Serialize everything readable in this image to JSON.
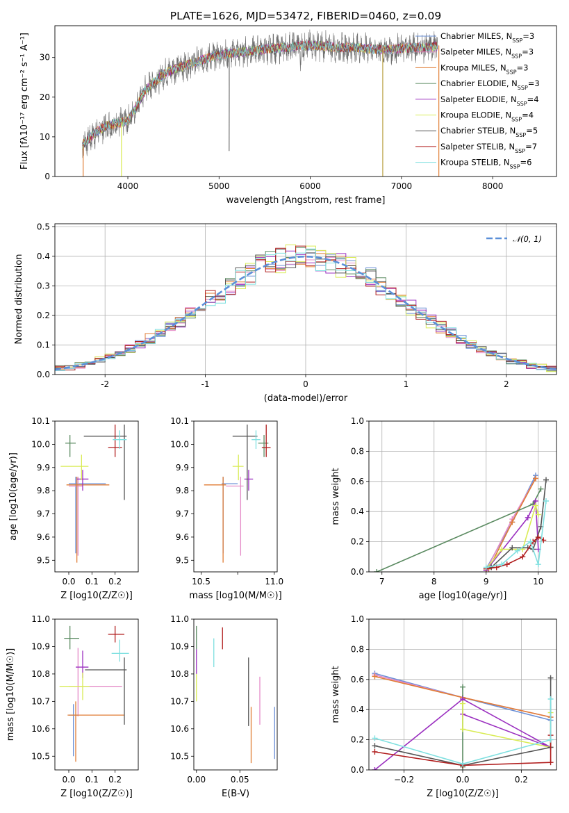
{
  "chart_data": [
    {
      "type": "line",
      "title": "PLATE=1626, MJD=53472, FIBERID=0460, z=0.09",
      "xlabel": "wavelength [Angstrom, rest frame]",
      "ylabel": "Flux [fλ10⁻¹⁷ erg cm⁻² s⁻¹ A⁻¹]",
      "xlim": [
        3200,
        8700
      ],
      "ylim": [
        0,
        38
      ],
      "xticks": [
        4000,
        5000,
        6000,
        7000,
        8000
      ],
      "yticks": [
        0,
        10,
        20,
        30
      ],
      "grid": false,
      "legend": "top-right",
      "continuum": {
        "wavelength": [
          3500,
          3600,
          3700,
          3800,
          3900,
          4000,
          4100,
          4200,
          4300,
          4400,
          4500,
          4700,
          4900,
          5100,
          5300,
          5500,
          5700,
          5900,
          6100,
          6300,
          6500,
          6700,
          6900,
          7100,
          7300,
          7400
        ],
        "flux": [
          8,
          10,
          12,
          13,
          13.5,
          14,
          18,
          22,
          24,
          26,
          27,
          28.5,
          30,
          31,
          31.5,
          32,
          32.5,
          33,
          33,
          32.5,
          32.5,
          32,
          32,
          32.5,
          32.5,
          33
        ]
      },
      "series": [
        {
          "name": "Chabrier MILES, N_SSP=3",
          "color": "#6a8fd6"
        },
        {
          "name": "Salpeter MILES, N_SSP=3",
          "color": "#e58bc8"
        },
        {
          "name": "Kroupa MILES, N_SSP=3",
          "color": "#e07d35"
        },
        {
          "name": "Chabrier ELODIE, N_SSP=3",
          "color": "#5a8a60"
        },
        {
          "name": "Salpeter ELODIE, N_SSP=4",
          "color": "#9b30c0"
        },
        {
          "name": "Kroupa ELODIE, N_SSP=4",
          "color": "#d9ec55"
        },
        {
          "name": "Chabrier STELIB, N_SSP=5",
          "color": "#555555"
        },
        {
          "name": "Salpeter STELIB, N_SSP=7",
          "color": "#b01c1c"
        },
        {
          "name": "Kroupa STELIB, N_SSP=6",
          "color": "#7fe0e0"
        }
      ]
    },
    {
      "type": "line",
      "xlabel": "(data-model)/error",
      "ylabel": "Normed distribution",
      "xlim": [
        -2.5,
        2.5
      ],
      "ylim": [
        0,
        0.51
      ],
      "xticks": [
        -2,
        -1,
        0,
        1,
        2
      ],
      "yticks": [
        0.0,
        0.1,
        0.2,
        0.3,
        0.4,
        0.5
      ],
      "grid": true,
      "legend": "top-right",
      "legend_label": "𝒩(0, 1)",
      "bin_width": 0.1,
      "bins_start": -2.5,
      "gaussian": {
        "mu": 0,
        "sigma": 1
      }
    },
    {
      "type": "scatter",
      "xlabel": "Z [log10(Z/Z☉)]",
      "ylabel": "age  [log10(age/yr)]",
      "xlim": [
        -0.06,
        0.3
      ],
      "ylim": [
        9.45,
        10.1
      ],
      "xticks": [
        0.0,
        0.1,
        0.2
      ],
      "yticks": [
        9.5,
        9.6,
        9.7,
        9.8,
        9.9,
        10.0,
        10.1
      ],
      "points": [
        {
          "model": 0,
          "x": 0.03,
          "y": 9.83,
          "xerr": [
            0.03,
            0.13
          ],
          "yerr": [
            0.3,
            0.03
          ]
        },
        {
          "model": 1,
          "x": 0.04,
          "y": 9.82,
          "xerr": [
            0.04,
            0.02
          ],
          "yerr": [
            0.3,
            0.04
          ]
        },
        {
          "model": 2,
          "x": 0.035,
          "y": 9.825,
          "xerr": [
            0.045,
            0.14
          ],
          "yerr": [
            0.335,
            0.035
          ]
        },
        {
          "model": 3,
          "x": 0.005,
          "y": 10.005,
          "xerr": [
            0.02,
            0.025
          ],
          "yerr": [
            0.06,
            0.035
          ]
        },
        {
          "model": 4,
          "x": 0.06,
          "y": 9.85,
          "xerr": [
            0.025,
            0.025
          ],
          "yerr": [
            0.05,
            0.04
          ]
        },
        {
          "model": 5,
          "x": 0.055,
          "y": 9.905,
          "xerr": [
            0.09,
            0.03
          ],
          "yerr": [
            0.06,
            0.05
          ]
        },
        {
          "model": 6,
          "x": 0.24,
          "y": 10.035,
          "xerr": [
            0.175,
            0.01
          ],
          "yerr": [
            0.275,
            0.05
          ]
        },
        {
          "model": 7,
          "x": 0.2,
          "y": 9.985,
          "xerr": [
            0.03,
            0.03
          ],
          "yerr": [
            0.04,
            0.1
          ]
        },
        {
          "model": 8,
          "x": 0.22,
          "y": 10.02,
          "xerr": [
            0.03,
            0.03
          ],
          "yerr": [
            0.04,
            0.04
          ]
        }
      ]
    },
    {
      "type": "scatter",
      "xlabel": "mass [log10(M/M☉)]",
      "ylabel": "",
      "xlim": [
        10.45,
        11.02
      ],
      "ylim": [
        9.45,
        10.1
      ],
      "xticks": [
        10.5,
        10.75,
        11.0
      ],
      "xticklabels": [
        "10.5",
        "",
        "11.0"
      ],
      "yticks": [
        9.5,
        9.6,
        9.7,
        9.8,
        9.9,
        10.0,
        10.1
      ],
      "points": [
        {
          "model": 0,
          "x": 10.65,
          "y": 9.83,
          "xerr": [
            0.01,
            0.1
          ],
          "yerr": [
            0.3,
            0.03
          ]
        },
        {
          "model": 1,
          "x": 10.77,
          "y": 9.82,
          "xerr": [
            0.1,
            0.02
          ],
          "yerr": [
            0.3,
            0.04
          ]
        },
        {
          "model": 2,
          "x": 10.65,
          "y": 9.825,
          "xerr": [
            0.13,
            0.02
          ],
          "yerr": [
            0.335,
            0.035
          ]
        },
        {
          "model": 3,
          "x": 10.93,
          "y": 10.005,
          "xerr": [
            0.04,
            0.03
          ],
          "yerr": [
            0.06,
            0.035
          ]
        },
        {
          "model": 4,
          "x": 10.825,
          "y": 9.85,
          "xerr": [
            0.03,
            0.03
          ],
          "yerr": [
            0.05,
            0.04
          ]
        },
        {
          "model": 5,
          "x": 10.755,
          "y": 9.905,
          "xerr": [
            0.04,
            0.035
          ],
          "yerr": [
            0.06,
            0.05
          ]
        },
        {
          "model": 6,
          "x": 10.815,
          "y": 10.035,
          "xerr": [
            0.1,
            0.07
          ],
          "yerr": [
            0.275,
            0.05
          ]
        },
        {
          "model": 7,
          "x": 10.945,
          "y": 9.985,
          "xerr": [
            0.03,
            0.03
          ],
          "yerr": [
            0.04,
            0.1
          ]
        },
        {
          "model": 8,
          "x": 10.875,
          "y": 10.02,
          "xerr": [
            0.03,
            0.03
          ],
          "yerr": [
            0.04,
            0.04
          ]
        }
      ]
    },
    {
      "type": "line",
      "xlabel": "age  [log10(age/yr)]",
      "ylabel": "mass weight",
      "xlim": [
        6.75,
        10.35
      ],
      "ylim": [
        0,
        1.0
      ],
      "xticks": [
        7,
        8,
        9,
        10
      ],
      "yticks": [
        0.0,
        0.2,
        0.4,
        0.6,
        0.8,
        1.0
      ],
      "grid": true,
      "series": [
        {
          "model": 0,
          "x": [
            9.0,
            9.5,
            9.95
          ],
          "y": [
            0.02,
            0.33,
            0.64
          ]
        },
        {
          "model": 1,
          "x": [
            9.0,
            9.5,
            9.95
          ],
          "y": [
            0.01,
            0.35,
            0.62
          ]
        },
        {
          "model": 2,
          "x": [
            9.05,
            9.5,
            9.95
          ],
          "y": [
            0.02,
            0.33,
            0.62
          ]
        },
        {
          "model": 3,
          "x": [
            6.9,
            9.9,
            10.05
          ],
          "y": [
            0.0,
            0.45,
            0.55
          ]
        },
        {
          "model": 4,
          "x": [
            9.0,
            9.8,
            9.95,
            10.0
          ],
          "y": [
            0.01,
            0.36,
            0.47,
            0.15
          ]
        },
        {
          "model": 5,
          "x": [
            9.0,
            9.3,
            9.7,
            9.95,
            10.0
          ],
          "y": [
            0.02,
            0.15,
            0.15,
            0.44,
            0.38
          ]
        },
        {
          "model": 6,
          "x": [
            9.1,
            9.5,
            9.8,
            9.9,
            10.05,
            10.15
          ],
          "y": [
            0.03,
            0.16,
            0.16,
            0.15,
            0.3,
            0.61
          ]
        },
        {
          "model": 7,
          "x": [
            9.0,
            9.2,
            9.4,
            9.7,
            9.9,
            10.0,
            10.1
          ],
          "y": [
            0.02,
            0.03,
            0.05,
            0.1,
            0.2,
            0.23,
            0.21
          ]
        },
        {
          "model": 8,
          "x": [
            9.0,
            9.3,
            9.6,
            9.85,
            10.0,
            10.15
          ],
          "y": [
            0.03,
            0.05,
            0.14,
            0.2,
            0.05,
            0.47
          ]
        }
      ]
    },
    {
      "type": "scatter",
      "xlabel": "Z [log10(Z/Z☉)]",
      "ylabel": "mass [log10(M/M☉)]",
      "xlim": [
        -0.06,
        0.3
      ],
      "ylim": [
        10.45,
        11.0
      ],
      "xticks": [
        0.0,
        0.1,
        0.2
      ],
      "yticks": [
        10.5,
        10.6,
        10.7,
        10.8,
        10.9,
        11.0
      ],
      "points": [
        {
          "model": 0,
          "x": 0.02,
          "y": 10.65,
          "xerr": [
            0.02,
            0.02
          ],
          "yerr": [
            0.15,
            0.04
          ]
        },
        {
          "model": 1,
          "x": 0.04,
          "y": 10.755,
          "xerr": [
            0.04,
            0.19
          ],
          "yerr": [
            0.11,
            0.14
          ]
        },
        {
          "model": 2,
          "x": 0.03,
          "y": 10.65,
          "xerr": [
            0.035,
            0.21
          ],
          "yerr": [
            0.17,
            0.05
          ]
        },
        {
          "model": 3,
          "x": 0.005,
          "y": 10.93,
          "xerr": [
            0.025,
            0.04
          ],
          "yerr": [
            0.04,
            0.045
          ]
        },
        {
          "model": 4,
          "x": 0.06,
          "y": 10.825,
          "xerr": [
            0.03,
            0.025
          ],
          "yerr": [
            0.04,
            0.06
          ]
        },
        {
          "model": 5,
          "x": 0.06,
          "y": 10.755,
          "xerr": [
            0.1,
            0.03
          ],
          "yerr": [
            0.05,
            0.05
          ]
        },
        {
          "model": 6,
          "x": 0.24,
          "y": 10.815,
          "xerr": [
            0.17,
            0.01
          ],
          "yerr": [
            0.2,
            0.045
          ]
        },
        {
          "model": 7,
          "x": 0.2,
          "y": 10.945,
          "xerr": [
            0.03,
            0.04
          ],
          "yerr": [
            0.03,
            0.03
          ]
        },
        {
          "model": 8,
          "x": 0.22,
          "y": 10.875,
          "xerr": [
            0.035,
            0.04
          ],
          "yerr": [
            0.03,
            0.05
          ]
        }
      ]
    },
    {
      "type": "scatter",
      "xlabel": "E(B-V)",
      "ylabel": "",
      "xlim": [
        -0.003,
        0.093
      ],
      "ylim": [
        10.45,
        11.0
      ],
      "xticks": [
        0.0,
        0.05
      ],
      "xticklabels": [
        "0.00",
        "0.05"
      ],
      "yticks": [
        10.5,
        10.6,
        10.7,
        10.8,
        10.9,
        11.0
      ],
      "points": [
        {
          "model": 0,
          "x": 0.09,
          "y": 10.58,
          "yerr": [
            0.09,
            0.1
          ]
        },
        {
          "model": 1,
          "x": 0.073,
          "y": 10.7,
          "yerr": [
            0.085,
            0.09
          ]
        },
        {
          "model": 2,
          "x": 0.063,
          "y": 10.57,
          "yerr": [
            0.095,
            0.11
          ]
        },
        {
          "model": 3,
          "x": 0.0,
          "y": 10.93,
          "yerr": [
            0.04,
            0.045
          ]
        },
        {
          "model": 4,
          "x": 0.0,
          "y": 10.85,
          "yerr": [
            0.05,
            0.04
          ]
        },
        {
          "model": 5,
          "x": 0.0,
          "y": 10.76,
          "yerr": [
            0.06,
            0.04
          ]
        },
        {
          "model": 6,
          "x": 0.06,
          "y": 10.73,
          "yerr": [
            0.12,
            0.13
          ]
        },
        {
          "model": 7,
          "x": 0.03,
          "y": 10.92,
          "yerr": [
            0.03,
            0.05
          ]
        },
        {
          "model": 8,
          "x": 0.02,
          "y": 10.87,
          "yerr": [
            0.045,
            0.06
          ]
        }
      ]
    },
    {
      "type": "line",
      "xlabel": "Z [log10(Z/Z☉)]",
      "ylabel": "mass weight",
      "xlim": [
        -0.32,
        0.32
      ],
      "ylim": [
        0,
        1.0
      ],
      "xticks": [
        -0.2,
        0.0,
        0.2
      ],
      "yticks": [
        0.0,
        0.2,
        0.4,
        0.6,
        0.8,
        1.0
      ],
      "grid": true,
      "series": [
        {
          "model": 0,
          "x": [
            -0.3,
            0.0,
            0.3
          ],
          "y": [
            0.64,
            0.48,
            0.33
          ]
        },
        {
          "model": 1,
          "x": [
            -0.3,
            0.0,
            0.3
          ],
          "y": [
            0.63,
            0.48,
            0.35
          ]
        },
        {
          "model": 2,
          "x": [
            -0.3,
            0.0,
            0.3
          ],
          "y": [
            0.62,
            0.48,
            0.35
          ]
        },
        {
          "model": 3,
          "x": [
            0.0,
            0.0
          ],
          "y": [
            0.55,
            0.02
          ]
        },
        {
          "model": 4,
          "x": [
            -0.3,
            0.0,
            0.3,
            0.0
          ],
          "y": [
            0.0,
            0.47,
            0.15,
            0.37
          ]
        },
        {
          "model": 5,
          "x": [
            0.0,
            0.0,
            0.3,
            0.3
          ],
          "y": [
            0.44,
            0.27,
            0.15,
            0.38
          ]
        },
        {
          "model": 6,
          "x": [
            -0.3,
            0.0,
            0.3,
            0.3
          ],
          "y": [
            0.16,
            0.03,
            0.15,
            0.61
          ]
        },
        {
          "model": 7,
          "x": [
            -0.3,
            0.0,
            0.3,
            0.3
          ],
          "y": [
            0.12,
            0.03,
            0.05,
            0.23
          ]
        },
        {
          "model": 8,
          "x": [
            -0.3,
            0.0,
            0.3,
            0.3
          ],
          "y": [
            0.21,
            0.04,
            0.2,
            0.47
          ]
        }
      ]
    }
  ]
}
